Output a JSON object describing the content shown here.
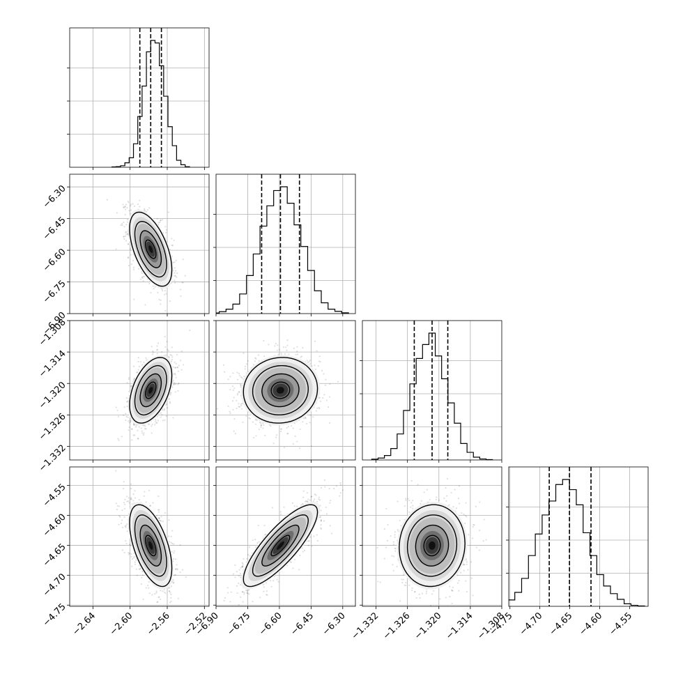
{
  "chart_data": {
    "type": "corner",
    "title": "",
    "parameters": [
      {
        "range": [
          -2.665,
          -2.515
        ],
        "ticks": [
          -2.64,
          -2.6,
          -2.56,
          -2.52
        ],
        "tick_labels": [
          "−2.64",
          "−2.60",
          "−2.56",
          "−2.52"
        ],
        "quantiles": [
          -2.5895,
          -2.5778,
          -2.5663
        ]
      },
      {
        "range": [
          -6.9,
          -6.24
        ],
        "ticks": [
          -6.9,
          -6.75,
          -6.6,
          -6.45,
          -6.3
        ],
        "tick_labels": [
          "−6.90",
          "−6.75",
          "−6.60",
          "−6.45",
          "−6.30"
        ],
        "quantiles": [
          -6.684,
          -6.595,
          -6.505
        ]
      },
      {
        "range": [
          -1.3346,
          -1.308
        ],
        "ticks": [
          -1.332,
          -1.326,
          -1.32,
          -1.314,
          -1.308
        ],
        "tick_labels": [
          "−1.332",
          "−1.326",
          "−1.320",
          "−1.314",
          "−1.308"
        ],
        "quantiles": [
          -1.3247,
          -1.3213,
          -1.3183
        ]
      },
      {
        "range": [
          -4.752,
          -4.519
        ],
        "ticks": [
          -4.75,
          -4.7,
          -4.65,
          -4.6,
          -4.55
        ],
        "tick_labels": [
          "−4.75",
          "−4.70",
          "−4.65",
          "−4.60",
          "−4.55"
        ],
        "quantiles": [
          -4.6843,
          -4.6505,
          -4.6145
        ]
      }
    ],
    "histograms": [
      {
        "values": [
          0.3,
          0.5,
          1.2,
          3.5,
          7.5,
          18.5,
          40,
          64,
          91,
          100,
          98,
          80,
          56,
          32,
          17,
          5.5,
          2,
          0.4
        ]
      },
      {
        "values": [
          0.5,
          1.5,
          3.5,
          7.5,
          15.5,
          30,
          47,
          69,
          85,
          97,
          100,
          87,
          70,
          53,
          34,
          18,
          8.5,
          3.5,
          1.8,
          0.6
        ]
      },
      {
        "values": [
          0.6,
          1.5,
          3.5,
          9,
          20.5,
          39,
          60,
          80,
          91,
          100,
          82,
          64,
          45,
          29,
          13,
          6,
          2.2,
          0.8,
          0.3
        ]
      },
      {
        "values": [
          0.4,
          2,
          5,
          11,
          22,
          40,
          57,
          72,
          83,
          96,
          100,
          92,
          80,
          58,
          40,
          25,
          16,
          10,
          5.5,
          2,
          0.8,
          0.3
        ]
      }
    ],
    "correlations": [
      [
        1,
        -0.55,
        0.45,
        -0.55
      ],
      [
        -0.55,
        1,
        0.05,
        0.82
      ],
      [
        0.45,
        0.05,
        1,
        0.05
      ],
      [
        -0.55,
        0.82,
        0.05,
        1
      ]
    ],
    "contour_levels": [
      0.5,
      1.0,
      1.5,
      2.0
    ],
    "grid": true
  }
}
